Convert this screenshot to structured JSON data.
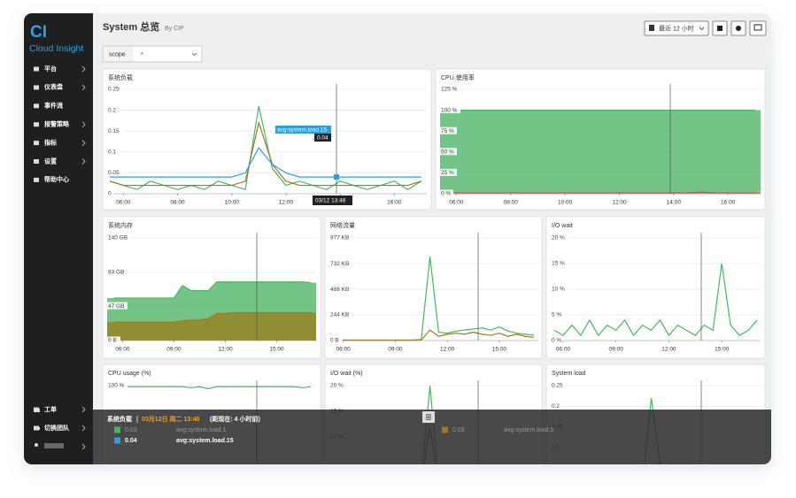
{
  "sidebar": {
    "logo": "CI",
    "brand": "Cloud Insight",
    "menu": [
      {
        "label": "平台",
        "submenu": true
      },
      {
        "label": "仪表盘",
        "submenu": true
      },
      {
        "label": "事件流",
        "submenu": false
      },
      {
        "label": "报警策略",
        "submenu": true
      },
      {
        "label": "指标",
        "submenu": true
      },
      {
        "label": "设置",
        "submenu": true
      },
      {
        "label": "帮助中心",
        "submenu": false
      }
    ],
    "bottom_menu": [
      {
        "label": "工单",
        "submenu": true
      },
      {
        "label": "切换团队",
        "submenu": true
      }
    ]
  },
  "header": {
    "title": "System 总览",
    "subtitle": "By CIP",
    "time_range": "最近 12 小时",
    "scope_label": "scope",
    "scope_value": "*"
  },
  "panels": [
    {
      "title": "系统负载",
      "type": "line",
      "xlim": [
        5.4,
        17.2
      ],
      "xticks": [
        {
          "value": 6,
          "label": "06:00"
        },
        {
          "value": 8,
          "label": "08:00"
        },
        {
          "value": 10,
          "label": "10:00"
        },
        {
          "value": 12,
          "label": "12:00"
        },
        {
          "value": 14,
          "label": "14:00"
        },
        {
          "value": 16,
          "label": "16:00"
        }
      ],
      "ylim": [
        0,
        0.25
      ],
      "yticks": [
        0,
        0.05,
        0.1,
        0.15,
        0.2,
        0.25
      ],
      "x": [
        5.5,
        6,
        6.5,
        7,
        7.5,
        8,
        8.5,
        9,
        9.5,
        10,
        10.5,
        11,
        11.5,
        12,
        12.5,
        13,
        13.5,
        14,
        14.5,
        15,
        15.5,
        16,
        16.5,
        17
      ],
      "series": [
        {
          "name": "avg:system.load.1",
          "color": "#4cb464",
          "values": [
            0.03,
            0.02,
            0.01,
            0.03,
            0.02,
            0.01,
            0.02,
            0.01,
            0.03,
            0.02,
            0.01,
            0.21,
            0.06,
            0.02,
            0.03,
            0.02,
            0.01,
            0.03,
            0.02,
            0.01,
            0.02,
            0.03,
            0.01,
            0.03
          ]
        },
        {
          "name": "avg:system.load.5",
          "color": "#9a7d1f",
          "values": [
            0.03,
            0.02,
            0.02,
            0.02,
            0.02,
            0.02,
            0.02,
            0.02,
            0.02,
            0.02,
            0.03,
            0.17,
            0.07,
            0.03,
            0.02,
            0.02,
            0.02,
            0.02,
            0.02,
            0.02,
            0.02,
            0.02,
            0.02,
            0.03
          ]
        },
        {
          "name": "avg:system.load.15",
          "color": "#2d9ee0",
          "values": [
            0.04,
            0.04,
            0.04,
            0.04,
            0.04,
            0.04,
            0.04,
            0.04,
            0.04,
            0.04,
            0.05,
            0.11,
            0.07,
            0.05,
            0.04,
            0.04,
            0.04,
            0.04,
            0.04,
            0.04,
            0.04,
            0.04,
            0.04,
            0.04
          ]
        }
      ],
      "hover": {
        "axis_label": "03/12 13:48",
        "tooltip_value": 0.04
      }
    },
    {
      "title": "CPU 使用率",
      "type": "area",
      "xlim": [
        5.4,
        17.2
      ],
      "xticks": [
        {
          "value": 6,
          "label": "06:00"
        },
        {
          "value": 8,
          "label": "08:00"
        },
        {
          "value": 10,
          "label": "10:00"
        },
        {
          "value": 12,
          "label": "12:00"
        },
        {
          "value": 14,
          "label": "14:00"
        },
        {
          "value": 16,
          "label": "16:00"
        }
      ],
      "ylim": [
        0,
        125
      ],
      "yticks": [
        {
          "value": 0,
          "label": "0 %"
        },
        {
          "value": 25,
          "label": "25 %"
        },
        {
          "value": 50,
          "label": "50 %"
        },
        {
          "value": 75,
          "label": "75 %"
        },
        {
          "value": 100,
          "label": "100 %"
        },
        {
          "value": 125,
          "label": "125 %"
        }
      ],
      "x": [
        5.5,
        6,
        6.5,
        7,
        7.5,
        8,
        8.5,
        9,
        9.5,
        10,
        10.5,
        11,
        11.5,
        12,
        12.5,
        13,
        13.5,
        14,
        14.5,
        15,
        15.5,
        16,
        16.5,
        17
      ],
      "series": [
        {
          "color": "#4cb464",
          "values": [
            100,
            100,
            100,
            100,
            100,
            100,
            100,
            100,
            100,
            100,
            100,
            100,
            100,
            100,
            100,
            100,
            100,
            100,
            100,
            100,
            100,
            100,
            100,
            100
          ]
        },
        {
          "color": "#d9534f",
          "values": [
            1,
            1,
            1,
            1,
            1,
            1,
            1,
            1,
            1,
            1,
            1,
            1,
            1,
            1,
            1,
            1,
            1,
            1,
            1,
            2,
            1,
            1,
            1,
            1
          ]
        }
      ]
    },
    {
      "title": "系统内存",
      "type": "area",
      "xlim": [
        5.1,
        17.3
      ],
      "xticks": [
        {
          "value": 6,
          "label": "06:00"
        },
        {
          "value": 9,
          "label": "09:00"
        },
        {
          "value": 12,
          "label": "12:00"
        },
        {
          "value": 15,
          "label": "15:00"
        }
      ],
      "ylim": [
        0,
        140
      ],
      "yticks": [
        {
          "value": 0,
          "label": "0 B"
        },
        {
          "value": 47,
          "label": "47 GB"
        },
        {
          "value": 93,
          "label": "93 GB"
        },
        {
          "value": 140,
          "label": "140 GB"
        }
      ],
      "x": [
        5.5,
        6,
        6.5,
        7,
        7.5,
        8,
        8.5,
        9,
        9.5,
        10,
        10.5,
        11,
        11.5,
        12,
        12.5,
        13,
        13.5,
        14,
        14.5,
        15,
        15.5,
        16,
        16.5,
        17
      ],
      "series": [
        {
          "color": "#4cb464",
          "values": [
            58,
            58,
            58,
            58,
            58,
            58,
            58,
            58,
            75,
            68,
            68,
            68,
            80,
            80,
            80,
            80,
            80,
            80,
            80,
            80,
            80,
            80,
            80,
            79
          ]
        },
        {
          "color": "#9a7d1f",
          "values": [
            25,
            25,
            25,
            25,
            25,
            25,
            25,
            25,
            27,
            28,
            28,
            30,
            37,
            37,
            38,
            38,
            38,
            38,
            38,
            38,
            38,
            38,
            38,
            38
          ]
        }
      ]
    },
    {
      "title": "网络流量",
      "type": "line",
      "xlim": [
        5.2,
        17.25
      ],
      "xticks": [
        {
          "value": 6,
          "label": "06:00"
        },
        {
          "value": 9,
          "label": "09:00"
        },
        {
          "value": 12,
          "label": "12:00"
        },
        {
          "value": 15,
          "label": "15:00"
        }
      ],
      "ylim": [
        0,
        977
      ],
      "yticks": [
        {
          "value": 0,
          "label": "0 B"
        },
        {
          "value": 244,
          "label": "244 KB"
        },
        {
          "value": 488,
          "label": "488 KB"
        },
        {
          "value": 732,
          "label": "732 KB"
        },
        {
          "value": 977,
          "label": "977 KB"
        }
      ],
      "x": [
        5.5,
        6,
        6.5,
        7,
        7.5,
        8,
        8.5,
        9,
        9.5,
        10,
        10.5,
        11,
        11.5,
        12,
        12.5,
        13,
        13.5,
        14,
        14.5,
        15,
        15.5,
        16,
        16.5,
        17
      ],
      "series": [
        {
          "color": "#4cb464",
          "values": [
            5,
            5,
            5,
            5,
            5,
            5,
            5,
            5,
            5,
            5,
            10,
            800,
            80,
            70,
            90,
            100,
            110,
            120,
            100,
            130,
            90,
            70,
            60,
            50
          ]
        },
        {
          "color": "#9a7d1f",
          "values": [
            3,
            3,
            3,
            3,
            3,
            3,
            3,
            3,
            3,
            3,
            5,
            100,
            40,
            60,
            70,
            60,
            80,
            60,
            50,
            70,
            40,
            60,
            40,
            30
          ]
        }
      ]
    },
    {
      "title": "I/O wait",
      "type": "line",
      "xlim": [
        5.3,
        17.2
      ],
      "xticks": [
        {
          "value": 6,
          "label": "06:00"
        },
        {
          "value": 9,
          "label": "09:00"
        },
        {
          "value": 12,
          "label": "12:00"
        },
        {
          "value": 15,
          "label": "15:00"
        }
      ],
      "ylim": [
        0,
        20
      ],
      "yticks": [
        {
          "value": 0,
          "label": "0 %"
        },
        {
          "value": 5,
          "label": "5 %"
        },
        {
          "value": 10,
          "label": "10 %"
        },
        {
          "value": 15,
          "label": "15 %"
        },
        {
          "value": 20,
          "label": "20 %"
        }
      ],
      "x": [
        5.5,
        6,
        6.5,
        7,
        7.5,
        8,
        8.5,
        9,
        9.5,
        10,
        10.5,
        11,
        11.5,
        12,
        12.5,
        13,
        13.5,
        14,
        14.5,
        15,
        15.5,
        16,
        16.5,
        17
      ],
      "series": [
        {
          "color": "#4cb464",
          "values": [
            2,
            1,
            3,
            1,
            4,
            1,
            3,
            2,
            4,
            1,
            3,
            2,
            4,
            1,
            3,
            2,
            1,
            3,
            2,
            15,
            3,
            1,
            2,
            4
          ]
        }
      ]
    },
    {
      "title": "CPU usage (%)",
      "type": "line",
      "xlim": [
        5.1,
        17.3
      ],
      "ylim": [
        0,
        100
      ],
      "yticks": [
        {
          "value": 100,
          "label": "100 %"
        }
      ],
      "x": [
        5.5,
        6,
        6.5,
        7,
        7.5,
        8,
        8.5,
        9,
        9.5,
        10,
        10.5,
        11,
        11.5,
        12,
        12.5,
        13,
        13.5,
        14,
        14.5,
        15,
        15.5,
        16,
        16.5,
        17
      ],
      "series": [
        {
          "color": "#4cb464",
          "values": [
            99,
            99,
            99,
            99,
            99,
            99,
            99,
            99,
            99,
            98,
            99,
            97,
            99,
            99,
            99,
            99,
            99,
            99,
            99,
            99,
            99,
            99,
            98,
            99
          ]
        }
      ]
    },
    {
      "title": "I/O wait (%)",
      "type": "line",
      "xlim": [
        5.2,
        17.25
      ],
      "ylim": [
        0,
        20
      ],
      "yticks": [
        {
          "value": 10,
          "label": "10 %"
        },
        {
          "value": 15,
          "label": "15 %"
        },
        {
          "value": 20,
          "label": "20 %"
        }
      ],
      "x": [
        5.5,
        6,
        6.5,
        7,
        7.5,
        8,
        8.5,
        9,
        9.5,
        10,
        10.5,
        11,
        11.5,
        12,
        12.5,
        13,
        13.5,
        14,
        14.5,
        15,
        15.5,
        16,
        16.5,
        17
      ],
      "series": [
        {
          "color": "#4cb464",
          "values": [
            1,
            1,
            1,
            1,
            1,
            1,
            1,
            1,
            1,
            1,
            2,
            20,
            1,
            1,
            1,
            1,
            1,
            1,
            1,
            1,
            1,
            1,
            1,
            1
          ]
        },
        {
          "color": "#9a7d1f",
          "values": [
            1,
            1,
            1,
            1,
            1,
            1,
            1,
            1,
            1,
            1,
            1,
            12,
            1,
            1,
            1,
            1,
            1,
            1,
            1,
            1,
            1,
            1,
            1,
            1
          ]
        }
      ]
    },
    {
      "title": "System load",
      "type": "line",
      "xlim": [
        5.3,
        17.2
      ],
      "ylim": [
        0,
        0.25
      ],
      "yticks": [
        0.1,
        0.15,
        0.2,
        0.25
      ],
      "x": [
        5.5,
        6,
        6.5,
        7,
        7.5,
        8,
        8.5,
        9,
        9.5,
        10,
        10.5,
        11,
        11.5,
        12,
        12.5,
        13,
        13.5,
        14,
        14.5,
        15,
        15.5,
        16,
        16.5,
        17
      ],
      "series": [
        {
          "color": "#4cb464",
          "values": [
            0.03,
            0.02,
            0.01,
            0.03,
            0.02,
            0.01,
            0.02,
            0.01,
            0.03,
            0.02,
            0.01,
            0.22,
            0.06,
            0.02,
            0.03,
            0.02,
            0.01,
            0.03,
            0.02,
            0.01,
            0.02,
            0.03,
            0.01,
            0.03
          ]
        }
      ]
    }
  ],
  "overlay": {
    "time": "03月12日 周二 13:48",
    "ago": "(距现在: 4 小时前)",
    "rows": [
      {
        "value": 0.03,
        "series": 0
      },
      {
        "value": 0.04,
        "series": 2
      },
      {
        "value": 0.03,
        "series": 1
      }
    ]
  }
}
